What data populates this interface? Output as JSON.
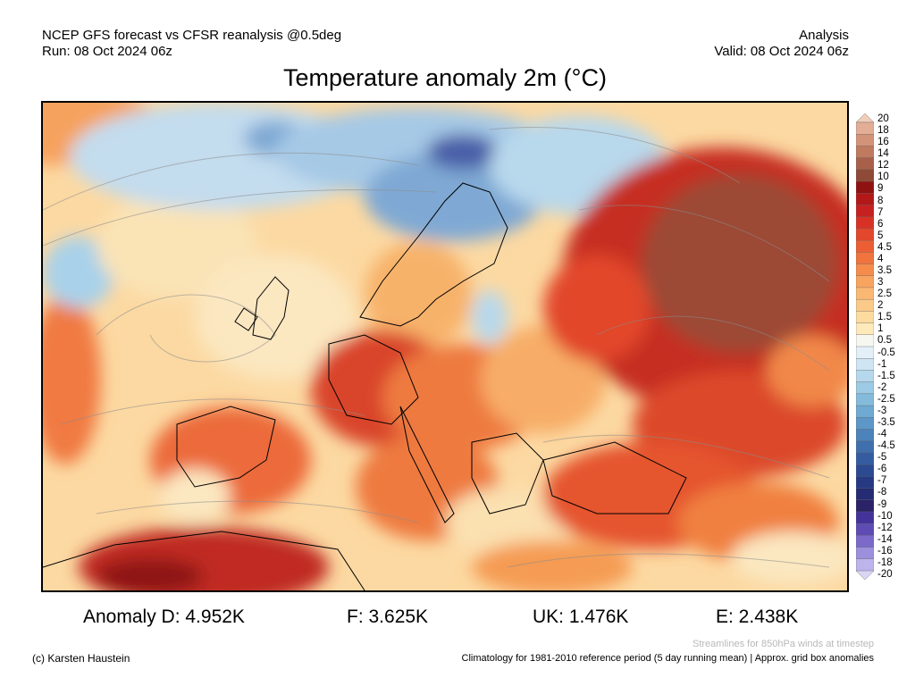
{
  "header": {
    "line1_left": "NCEP GFS forecast vs CFSR reanalysis @0.5deg",
    "line2_left": "Run: 08 Oct 2024 06z",
    "line1_right": "Analysis",
    "line2_right": "Valid: 08 Oct 2024 06z"
  },
  "title": "Temperature anomaly 2m (°C)",
  "colorbar": {
    "labels": [
      "20",
      "18",
      "16",
      "14",
      "12",
      "10",
      "9",
      "8",
      "7",
      "6",
      "5",
      "4.5",
      "4",
      "3.5",
      "3",
      "2.5",
      "2",
      "1.5",
      "1",
      "0.5",
      "-0.5",
      "-1",
      "-1.5",
      "-2",
      "-2.5",
      "-3",
      "-3.5",
      "-4",
      "-4.5",
      "-5",
      "-6",
      "-7",
      "-8",
      "-9",
      "-10",
      "-12",
      "-14",
      "-16",
      "-18",
      "-20"
    ],
    "colors": [
      "#f0cdb8",
      "#e3ae96",
      "#d39379",
      "#bf7a60",
      "#a9604a",
      "#8e4a37",
      "#8f1212",
      "#b21818",
      "#c72020",
      "#d83226",
      "#e3472c",
      "#ec5e34",
      "#f1733d",
      "#f58c4c",
      "#f8a45e",
      "#fab873",
      "#fbca88",
      "#fcdb9f",
      "#fde9ba",
      "#f7f7f2",
      "#e4f0f8",
      "#cfe5f3",
      "#b6d8ec",
      "#9dcae4",
      "#84bbdb",
      "#6eaad2",
      "#5c97c7",
      "#4d83bb",
      "#406fae",
      "#355ca0",
      "#2c4a92",
      "#263a84",
      "#252c74",
      "#2b2268",
      "#44339a",
      "#5e4cb4",
      "#7b6ac9",
      "#9c8fdb",
      "#bcb4ea",
      "#d9d5f5"
    ]
  },
  "stats": {
    "D": "Anomaly D: 4.952K",
    "F": "F: 3.625K",
    "UK": "UK: 1.476K",
    "E": "E: 2.438K"
  },
  "footer": {
    "streamlines": "Streamlines for 850hPa winds at timestep",
    "credit": "(c) Karsten Haustein",
    "climatology": "Climatology for 1981-2010 reference period (5 day running mean) | Approx. grid box anomalies"
  }
}
